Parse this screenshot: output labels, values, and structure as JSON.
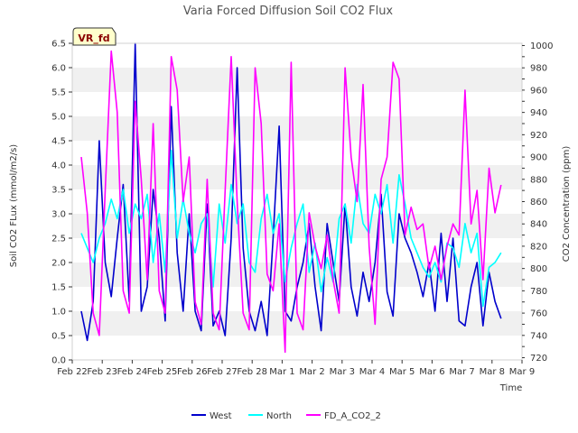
{
  "chart_data": {
    "type": "line",
    "title": "Varia Forced Diffusion Soil CO2 Flux",
    "xlabel": "Time",
    "ylabel": "Soil CO2 FLux (mmol/m2/s)",
    "y2label": "CO2 Concentration (ppm)",
    "badge": "VR_fd",
    "x_ticks": [
      "Feb 22",
      "Feb 23",
      "Feb 24",
      "Feb 25",
      "Feb 26",
      "Feb 27",
      "Feb 28",
      "Mar 1",
      "Mar 2",
      "Mar 3",
      "Mar 4",
      "Mar 5",
      "Mar 6",
      "Mar 7",
      "Mar 8",
      "Mar 9"
    ],
    "y_ticks": [
      "0.0",
      "0.5",
      "1.0",
      "1.5",
      "2.0",
      "2.5",
      "3.0",
      "3.5",
      "4.0",
      "4.5",
      "5.0",
      "5.5",
      "6.0",
      "6.5"
    ],
    "y2_ticks": [
      "720",
      "740",
      "760",
      "780",
      "800",
      "820",
      "840",
      "860",
      "880",
      "900",
      "920",
      "940",
      "960",
      "980",
      "1000"
    ],
    "ylim": [
      0,
      6.5
    ],
    "y2lim": [
      718,
      1002
    ],
    "xlim": [
      0,
      15
    ],
    "grid": "horizontal bands",
    "legend_position": "bottom-center",
    "series": [
      {
        "name": "West",
        "axis": "left",
        "color": "#0000cc",
        "x": [
          0.3,
          0.5,
          0.7,
          0.9,
          1.1,
          1.3,
          1.5,
          1.7,
          1.9,
          2.1,
          2.3,
          2.5,
          2.7,
          2.9,
          3.1,
          3.3,
          3.5,
          3.7,
          3.9,
          4.1,
          4.3,
          4.5,
          4.7,
          4.9,
          5.1,
          5.3,
          5.5,
          5.7,
          5.9,
          6.1,
          6.3,
          6.5,
          6.7,
          6.9,
          7.1,
          7.3,
          7.5,
          7.7,
          7.9,
          8.1,
          8.3,
          8.5,
          8.7,
          8.9,
          9.1,
          9.3,
          9.5,
          9.7,
          9.9,
          10.1,
          10.3,
          10.5,
          10.7,
          10.9,
          11.1,
          11.3,
          11.5,
          11.7,
          11.9,
          12.1,
          12.3,
          12.5,
          12.7,
          12.9,
          13.1,
          13.3,
          13.5,
          13.7,
          13.9,
          14.1,
          14.3
        ],
        "y": [
          1.0,
          0.4,
          1.2,
          4.5,
          2.0,
          1.3,
          2.5,
          3.6,
          1.2,
          6.5,
          1.0,
          1.5,
          3.5,
          2.5,
          0.8,
          5.2,
          2.2,
          1.0,
          3.0,
          1.0,
          0.6,
          3.2,
          0.7,
          1.0,
          0.5,
          2.5,
          6.0,
          2.3,
          1.0,
          0.6,
          1.2,
          0.5,
          2.5,
          4.8,
          1.0,
          0.8,
          1.5,
          2.0,
          2.8,
          1.5,
          0.6,
          2.8,
          2.0,
          1.2,
          3.2,
          1.5,
          0.9,
          1.8,
          1.2,
          2.0,
          3.4,
          1.4,
          0.9,
          3.0,
          2.5,
          2.2,
          1.8,
          1.3,
          2.0,
          1.0,
          2.6,
          1.2,
          2.5,
          0.8,
          0.7,
          1.5,
          2.0,
          0.7,
          1.8,
          1.2,
          0.85
        ]
      },
      {
        "name": "North",
        "axis": "left",
        "color": "#00ffff",
        "x": [
          0.3,
          0.5,
          0.7,
          0.9,
          1.1,
          1.3,
          1.5,
          1.7,
          1.9,
          2.1,
          2.3,
          2.5,
          2.7,
          2.9,
          3.1,
          3.3,
          3.5,
          3.7,
          3.9,
          4.1,
          4.3,
          4.5,
          4.7,
          4.9,
          5.1,
          5.3,
          5.5,
          5.7,
          5.9,
          6.1,
          6.3,
          6.5,
          6.7,
          6.9,
          7.1,
          7.3,
          7.5,
          7.7,
          7.9,
          8.1,
          8.3,
          8.5,
          8.7,
          8.9,
          9.1,
          9.3,
          9.5,
          9.7,
          9.9,
          10.1,
          10.3,
          10.5,
          10.7,
          10.9,
          11.1,
          11.3,
          11.5,
          11.7,
          11.9,
          12.1,
          12.3,
          12.5,
          12.7,
          12.9,
          13.1,
          13.3,
          13.5,
          13.7,
          13.9,
          14.1,
          14.3
        ],
        "y": [
          2.6,
          2.3,
          2.0,
          2.5,
          2.8,
          3.3,
          2.9,
          3.5,
          2.6,
          3.2,
          2.9,
          3.4,
          2.0,
          3.0,
          1.8,
          4.3,
          2.5,
          3.3,
          2.6,
          2.2,
          2.8,
          3.0,
          1.5,
          3.2,
          2.4,
          3.6,
          2.8,
          3.2,
          2.0,
          1.8,
          2.9,
          3.4,
          2.6,
          3.0,
          1.6,
          2.3,
          2.8,
          3.2,
          1.8,
          2.4,
          1.4,
          2.1,
          1.6,
          2.9,
          3.2,
          2.4,
          3.6,
          2.8,
          2.6,
          3.4,
          3.0,
          3.6,
          2.4,
          3.8,
          3.2,
          2.5,
          2.2,
          1.9,
          1.7,
          2.0,
          1.6,
          2.4,
          2.3,
          1.9,
          2.8,
          2.2,
          2.6,
          1.1,
          1.9,
          2.0,
          2.2
        ]
      },
      {
        "name": "FD_A_CO2_2",
        "axis": "right",
        "color": "#ff00ff",
        "x": [
          0.3,
          0.5,
          0.7,
          0.9,
          1.1,
          1.3,
          1.5,
          1.7,
          1.9,
          2.1,
          2.3,
          2.5,
          2.7,
          2.9,
          3.1,
          3.3,
          3.5,
          3.7,
          3.9,
          4.1,
          4.3,
          4.5,
          4.7,
          4.9,
          5.1,
          5.3,
          5.5,
          5.7,
          5.9,
          6.1,
          6.3,
          6.5,
          6.7,
          6.9,
          7.1,
          7.3,
          7.5,
          7.7,
          7.9,
          8.1,
          8.3,
          8.5,
          8.7,
          8.9,
          9.1,
          9.3,
          9.5,
          9.7,
          9.9,
          10.1,
          10.3,
          10.5,
          10.7,
          10.9,
          11.1,
          11.3,
          11.5,
          11.7,
          11.9,
          12.1,
          12.3,
          12.5,
          12.7,
          12.9,
          13.1,
          13.3,
          13.5,
          13.7,
          13.9,
          14.1,
          14.3
        ],
        "y": [
          900,
          850,
          760,
          740,
          870,
          995,
          940,
          780,
          760,
          950,
          880,
          790,
          930,
          780,
          760,
          990,
          960,
          860,
          900,
          770,
          750,
          880,
          760,
          745,
          870,
          990,
          860,
          760,
          745,
          980,
          930,
          795,
          780,
          840,
          725,
          985,
          760,
          745,
          850,
          820,
          800,
          830,
          790,
          760,
          980,
          900,
          860,
          965,
          820,
          750,
          880,
          900,
          985,
          970,
          830,
          855,
          835,
          840,
          800,
          820,
          790,
          820,
          840,
          830,
          960,
          840,
          870,
          790,
          890,
          850,
          875
        ]
      }
    ]
  }
}
